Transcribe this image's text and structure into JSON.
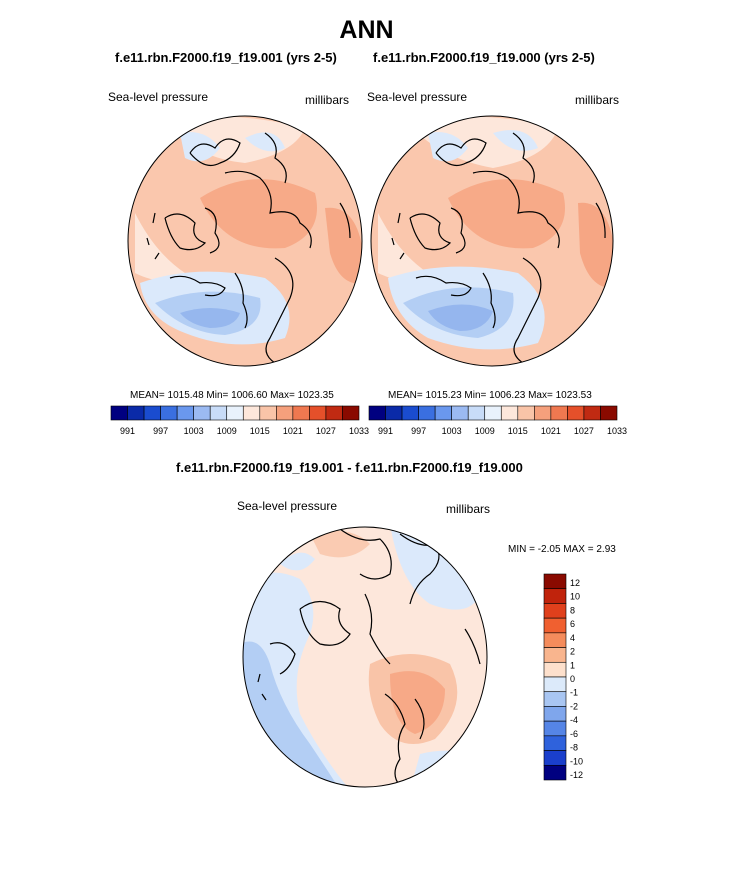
{
  "main_title": "ANN",
  "panels": [
    {
      "title": "f.e11.rbn.F2000.f19_f19.001 (yrs 2-5)",
      "variable": "Sea-level pressure",
      "units": "millibars",
      "stats": "MEAN= 1015.48  Min= 1006.60  Max= 1023.35",
      "colorbar": {
        "colors": [
          "#000080",
          "#0a2aa8",
          "#1a4ccf",
          "#3a6fe0",
          "#6a98ee",
          "#9bbaf2",
          "#c8dcf8",
          "#e9f2fc",
          "#fde7db",
          "#f9c4a8",
          "#f5a07c",
          "#ef7850",
          "#e5502a",
          "#c02a12",
          "#8a0a00"
        ],
        "tick_labels": [
          "991",
          "997",
          "1003",
          "1009",
          "1015",
          "1021",
          "1027",
          "1033"
        ]
      }
    },
    {
      "title": "f.e11.rbn.F2000.f19_f19.000 (yrs 2-5)",
      "variable": "Sea-level pressure",
      "units": "millibars",
      "stats": "MEAN= 1015.23  Min= 1006.23  Max= 1023.53",
      "colorbar": {
        "colors": [
          "#000080",
          "#0a2aa8",
          "#1a4ccf",
          "#3a6fe0",
          "#6a98ee",
          "#9bbaf2",
          "#c8dcf8",
          "#e9f2fc",
          "#fde7db",
          "#f9c4a8",
          "#f5a07c",
          "#ef7850",
          "#e5502a",
          "#c02a12",
          "#8a0a00"
        ],
        "tick_labels": [
          "991",
          "997",
          "1003",
          "1009",
          "1015",
          "1021",
          "1027",
          "1033"
        ]
      }
    }
  ],
  "diff": {
    "title": "f.e11.rbn.F2000.f19_f19.001 - f.e11.rbn.F2000.f19_f19.000",
    "variable": "Sea-level pressure",
    "units": "millibars",
    "stats": "MIN =  -2.05 MAX =   2.93",
    "colorbar": {
      "colors": [
        "#8a0a00",
        "#c0230c",
        "#e0401c",
        "#f06030",
        "#f58c5c",
        "#f9b58e",
        "#fde0cc",
        "#dceafa",
        "#a9c6f2",
        "#7fa6ec",
        "#5585e6",
        "#2f62dc",
        "#1a3fcc",
        "#000080"
      ],
      "tick_labels": [
        "12",
        "10",
        "8",
        "6",
        "4",
        "2",
        "1",
        "0",
        "-1",
        "-2",
        "-4",
        "-6",
        "-8",
        "-10",
        "-12"
      ]
    }
  },
  "colors": {
    "ocean_warm": "#fac7ad",
    "ocean_light": "#fde7db",
    "warm_strong": "#f5a07c",
    "cool_light": "#dbe9fb",
    "cool_mid": "#b3cef4",
    "cool_strong": "#8fb1ec"
  }
}
